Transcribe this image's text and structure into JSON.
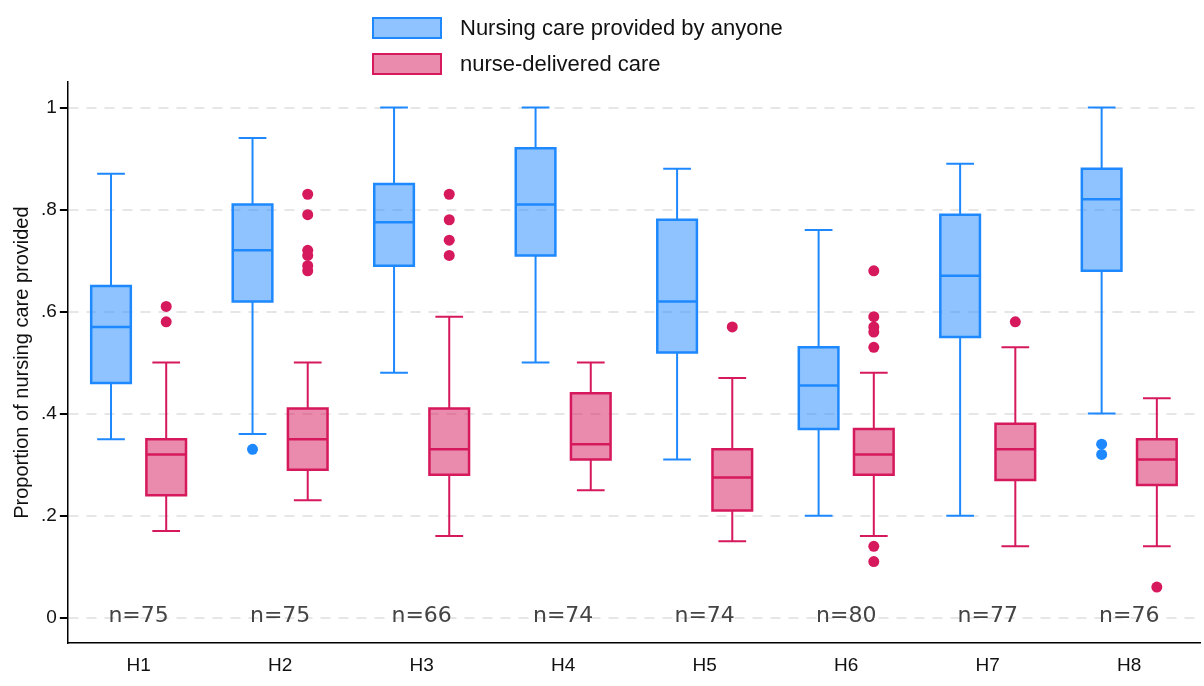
{
  "chart_data": {
    "type": "box",
    "ylabel": "Proportion of nursing care provided",
    "categories": [
      "H1",
      "H2",
      "H3",
      "H4",
      "H5",
      "H6",
      "H7",
      "H8"
    ],
    "ylim": [
      -0.05,
      1.05
    ],
    "yticks": [
      {
        "value": 0,
        "label": "0"
      },
      {
        "value": 0.2,
        "label": ".2"
      },
      {
        "value": 0.4,
        "label": ".4"
      },
      {
        "value": 0.6,
        "label": ".6"
      },
      {
        "value": 0.8,
        "label": ".8"
      },
      {
        "value": 1,
        "label": "1"
      }
    ],
    "grid": "y",
    "legend": "top",
    "series": [
      {
        "name": "Nursing care provided by anyone",
        "color": "#1e88ff",
        "boxes": [
          {
            "low": 0.35,
            "q1": 0.46,
            "median": 0.57,
            "q3": 0.65,
            "high": 0.87
          },
          {
            "low": 0.36,
            "q1": 0.62,
            "median": 0.72,
            "q3": 0.81,
            "high": 0.94,
            "outliers": [
              0.33
            ]
          },
          {
            "low": 0.48,
            "q1": 0.69,
            "median": 0.775,
            "q3": 0.85,
            "high": 1
          },
          {
            "low": 0.5,
            "q1": 0.71,
            "median": 0.81,
            "q3": 0.92,
            "high": 1
          },
          {
            "low": 0.31,
            "q1": 0.52,
            "median": 0.62,
            "q3": 0.78,
            "high": 0.88
          },
          {
            "low": 0.2,
            "q1": 0.37,
            "median": 0.455,
            "q3": 0.53,
            "high": 0.76
          },
          {
            "low": 0.2,
            "q1": 0.55,
            "median": 0.67,
            "q3": 0.79,
            "high": 0.89
          },
          {
            "low": 0.4,
            "q1": 0.68,
            "median": 0.82,
            "q3": 0.88,
            "high": 1,
            "outliers": [
              0.34,
              0.32
            ]
          }
        ]
      },
      {
        "name": "nurse-delivered care",
        "color": "#d6185c",
        "boxes": [
          {
            "low": 0.17,
            "q1": 0.24,
            "median": 0.32,
            "q3": 0.35,
            "high": 0.5,
            "outliers": [
              0.61,
              0.58
            ]
          },
          {
            "low": 0.23,
            "q1": 0.29,
            "median": 0.35,
            "q3": 0.41,
            "high": 0.5,
            "outliers": [
              0.83,
              0.79,
              0.72,
              0.71,
              0.69,
              0.68
            ]
          },
          {
            "low": 0.16,
            "q1": 0.28,
            "median": 0.33,
            "q3": 0.41,
            "high": 0.59,
            "outliers": [
              0.83,
              0.78,
              0.74,
              0.71
            ]
          },
          {
            "low": 0.25,
            "q1": 0.31,
            "median": 0.34,
            "q3": 0.44,
            "high": 0.5
          },
          {
            "low": 0.15,
            "q1": 0.21,
            "median": 0.275,
            "q3": 0.33,
            "high": 0.47,
            "outliers": [
              0.57
            ]
          },
          {
            "low": 0.16,
            "q1": 0.28,
            "median": 0.32,
            "q3": 0.37,
            "high": 0.48,
            "outliers": [
              0.68,
              0.59,
              0.57,
              0.56,
              0.53,
              0.14,
              0.11
            ]
          },
          {
            "low": 0.14,
            "q1": 0.27,
            "median": 0.33,
            "q3": 0.38,
            "high": 0.53,
            "outliers": [
              0.58
            ]
          },
          {
            "low": 0.14,
            "q1": 0.26,
            "median": 0.31,
            "q3": 0.35,
            "high": 0.43,
            "outliers": [
              0.06
            ]
          }
        ]
      }
    ],
    "annotations": [
      "n=75",
      "n=75",
      "n=66",
      "n=74",
      "n=74",
      "n=80",
      "n=77",
      "n=76"
    ]
  }
}
